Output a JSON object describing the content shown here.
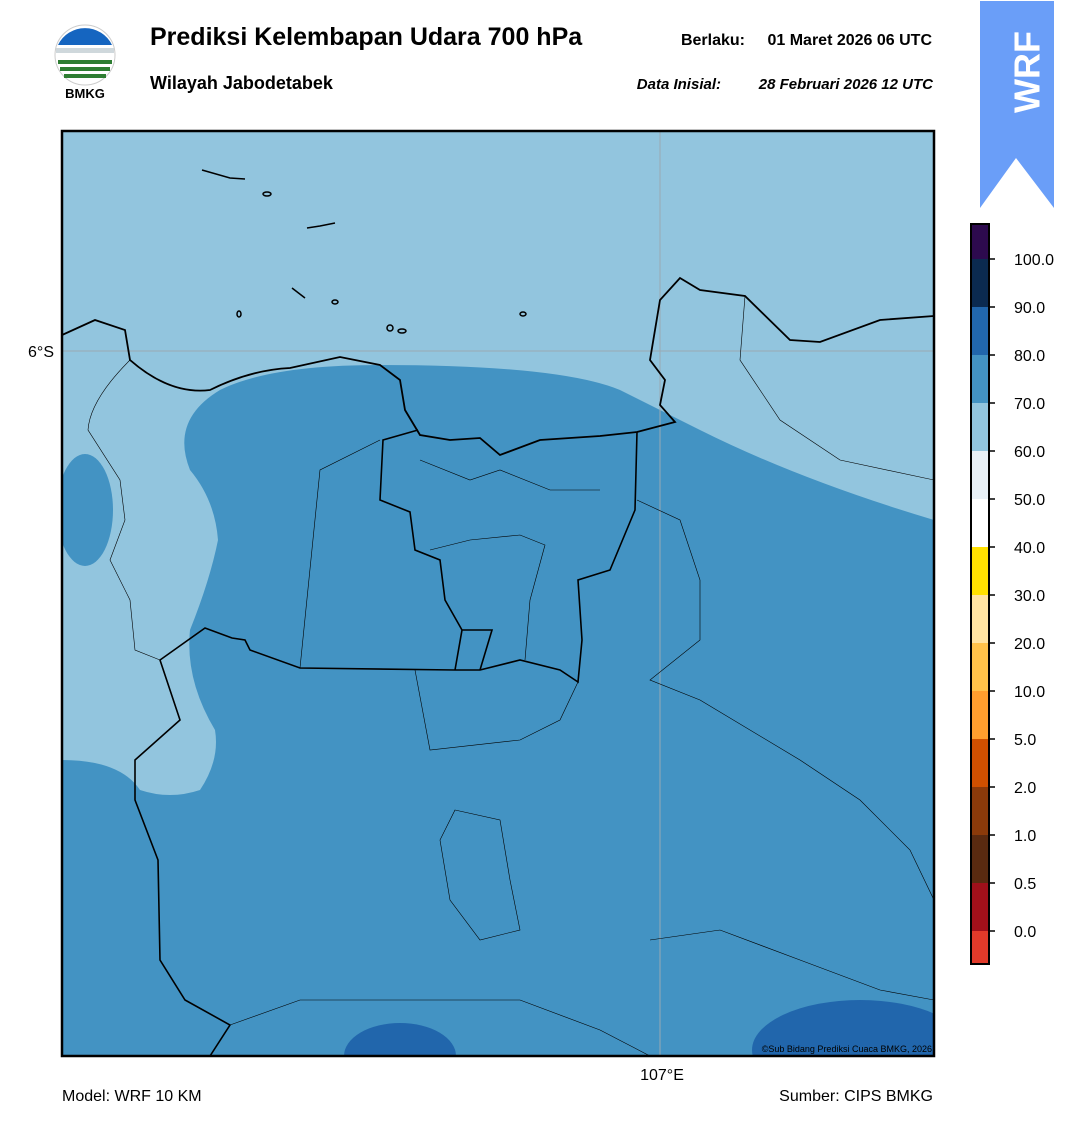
{
  "header": {
    "title": "Prediksi Kelembapan Udara 700 hPa",
    "subtitle": "Wilayah Jabodetabek",
    "valid_label": "Berlaku:",
    "valid_value": "01 Maret 2026 06 UTC",
    "init_label": "Data Inisial:",
    "init_value": "28 Februari 2026 12 UTC"
  },
  "logo": {
    "text": "BMKG"
  },
  "badge": {
    "text": "WRF"
  },
  "map": {
    "lat_label": "6°S",
    "lon_label": "107°E",
    "credit": "©Sub Bidang Prediksi Cuaca BMKG, 2026"
  },
  "colorbar": {
    "labels": [
      "100.0",
      "90.0",
      "80.0",
      "70.0",
      "60.0",
      "50.0",
      "40.0",
      "30.0",
      "20.0",
      "10.0",
      "5.0",
      "2.0",
      "1.0",
      "0.5",
      "0.0"
    ],
    "colors": [
      "#2d0a4e",
      "#0b2a50",
      "#2166ac",
      "#4393c3",
      "#92c5de",
      "#e8f0f6",
      "#ffffff",
      "#ffe000",
      "#ffe3a0",
      "#ffc24a",
      "#ff9e2e",
      "#d05000",
      "#8b3a0a",
      "#5a2a10",
      "#a0101a",
      "#e03a2a"
    ]
  },
  "footer": {
    "model": "Model: WRF 10 KM",
    "source": "Sumber: CIPS BMKG"
  }
}
